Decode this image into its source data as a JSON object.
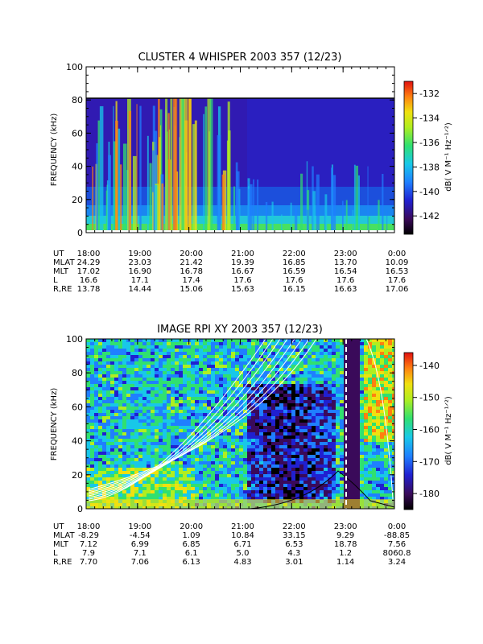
{
  "chart_data": [
    {
      "type": "heatmap",
      "title": "CLUSTER 4 WHISPER 2003 357 (12/23)",
      "ylabel": "FREQUENCY (kHz)",
      "ylim": [
        0,
        100
      ],
      "y_ticks": [
        "0",
        "20",
        "40",
        "60",
        "80",
        "100"
      ],
      "x_ticks": [
        "18:00",
        "19:00",
        "20:00",
        "21:00",
        "22:00",
        "23:00",
        "0:00"
      ],
      "colorbar": {
        "label": "dB( V M⁻¹ Hz⁻¹ᐟ²)",
        "ticks": [
          "-132",
          "-134",
          "-136",
          "-138",
          "-140",
          "-142"
        ],
        "range": [
          -143.5,
          -131
        ]
      },
      "ephemeris": [
        {
          "label": "UT",
          "values": [
            "18:00",
            "19:00",
            "20:00",
            "21:00",
            "22:00",
            "23:00",
            "0:00"
          ]
        },
        {
          "label": "MLAT",
          "values": [
            "24.29",
            "23.03",
            "21.42",
            "19.39",
            "16.85",
            "13.70",
            "10.09"
          ]
        },
        {
          "label": "MLT",
          "values": [
            "17.02",
            "16.90",
            "16.78",
            "16.67",
            "16.59",
            "16.54",
            "16.53"
          ]
        },
        {
          "label": "L",
          "values": [
            "16.6",
            "17.1",
            "17.4",
            "17.6",
            "17.6",
            "17.6",
            "17.6"
          ]
        },
        {
          "label": "R,RE",
          "values": [
            "13.78",
            "14.44",
            "15.06",
            "15.63",
            "16.15",
            "16.63",
            "17.06"
          ]
        }
      ]
    },
    {
      "type": "heatmap",
      "title": "IMAGE RPI XY 2003 357 (12/23)",
      "ylabel": "FREQUENCY (kHz)",
      "ylim": [
        0,
        100
      ],
      "y_ticks": [
        "0",
        "20",
        "40",
        "60",
        "80",
        "100"
      ],
      "x_ticks": [
        "18:00",
        "19:00",
        "20:00",
        "21:00",
        "22:00",
        "23:00",
        "0:00"
      ],
      "colorbar": {
        "label": "dB( V M⁻¹ Hz⁻¹ᐟ²)",
        "ticks": [
          "-140",
          "-150",
          "-160",
          "-170",
          "-180"
        ],
        "range": [
          -185,
          -136
        ]
      },
      "ephemeris": [
        {
          "label": "UT",
          "values": [
            "18:00",
            "19:00",
            "20:00",
            "21:00",
            "22:00",
            "23:00",
            "0:00"
          ]
        },
        {
          "label": "MLAT",
          "values": [
            "-8.29",
            "-4.54",
            "1.09",
            "10.84",
            "33.15",
            "9.29",
            "-88.85"
          ]
        },
        {
          "label": "MLT",
          "values": [
            "7.12",
            "6.99",
            "6.85",
            "6.71",
            "6.53",
            "18.78",
            "7.56"
          ]
        },
        {
          "label": "L",
          "values": [
            "7.9",
            "7.1",
            "6.1",
            "5.0",
            "4.3",
            "1.2",
            "8060.8"
          ]
        },
        {
          "label": "R,RE",
          "values": [
            "7.70",
            "7.06",
            "6.13",
            "4.83",
            "3.01",
            "1.14",
            "3.24"
          ]
        }
      ]
    }
  ]
}
